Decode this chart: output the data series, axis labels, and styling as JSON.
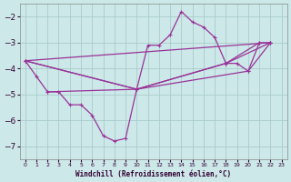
{
  "xlabel": "Windchill (Refroidissement éolien,°C)",
  "background_color": "#cce8e8",
  "grid_color": "#aacccc",
  "line_color": "#993399",
  "xlim": [
    -0.5,
    23.5
  ],
  "ylim": [
    -7.5,
    -1.5
  ],
  "xticks": [
    0,
    1,
    2,
    3,
    4,
    5,
    6,
    7,
    8,
    9,
    10,
    11,
    12,
    13,
    14,
    15,
    16,
    17,
    18,
    19,
    20,
    21,
    22,
    23
  ],
  "yticks": [
    -7,
    -6,
    -5,
    -4,
    -3,
    -2
  ],
  "main_line": {
    "x": [
      0,
      1,
      2,
      3,
      4,
      5,
      6,
      7,
      8,
      9,
      10,
      11,
      12,
      13,
      14,
      15,
      16,
      17,
      18,
      19,
      20,
      21,
      22
    ],
    "y": [
      -3.7,
      -4.3,
      -4.9,
      -4.9,
      -5.4,
      -5.4,
      -5.8,
      -6.6,
      -6.8,
      -6.7,
      -4.8,
      -3.1,
      -3.1,
      -2.7,
      -1.8,
      -2.2,
      -2.4,
      -2.8,
      -3.8,
      -3.8,
      -4.1,
      -3.0,
      -3.0
    ]
  },
  "trend_lines": [
    {
      "x": [
        0,
        22
      ],
      "y": [
        -3.7,
        -3.0
      ]
    },
    {
      "x": [
        0,
        10,
        18,
        22
      ],
      "y": [
        -3.7,
        -4.8,
        -3.8,
        -3.0
      ]
    },
    {
      "x": [
        0,
        10,
        20,
        22
      ],
      "y": [
        -3.7,
        -4.8,
        -4.1,
        -3.0
      ]
    },
    {
      "x": [
        2,
        10,
        18,
        21
      ],
      "y": [
        -4.9,
        -4.8,
        -3.8,
        -3.0
      ]
    }
  ]
}
